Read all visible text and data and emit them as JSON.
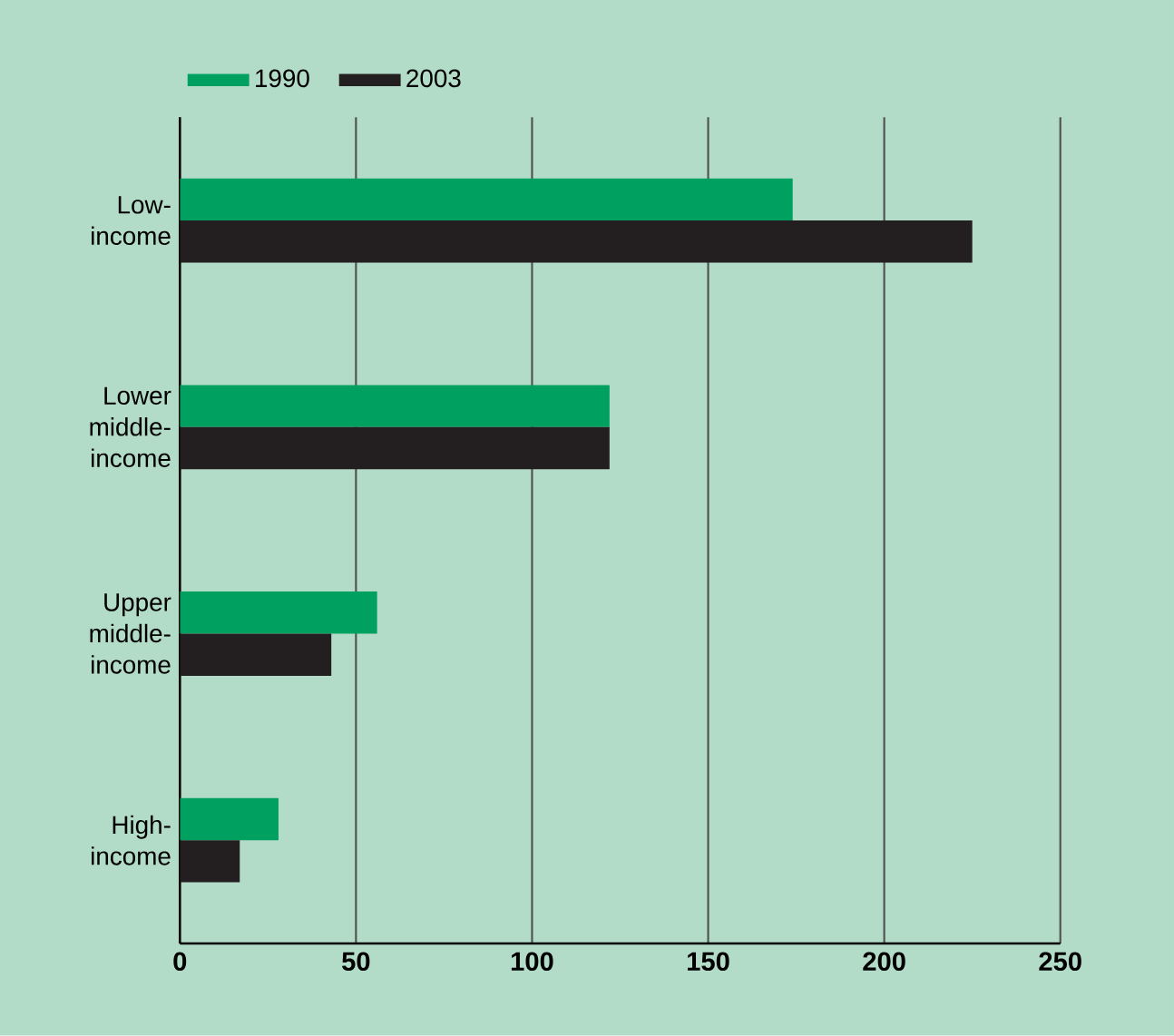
{
  "chart_data": {
    "type": "bar",
    "orientation": "horizontal",
    "categories": [
      "Low-income",
      "Lower middle-income",
      "Upper middle-income",
      "High-income"
    ],
    "series": [
      {
        "name": "1990",
        "color": "#00a060",
        "values": [
          174,
          122,
          56,
          28
        ]
      },
      {
        "name": "2003",
        "color": "#231f20",
        "values": [
          225,
          122,
          43,
          17
        ]
      }
    ],
    "xlim": [
      0,
      250
    ],
    "xticks": [
      0,
      50,
      100,
      150,
      200,
      250
    ],
    "grid": "x",
    "legend": "top left"
  }
}
